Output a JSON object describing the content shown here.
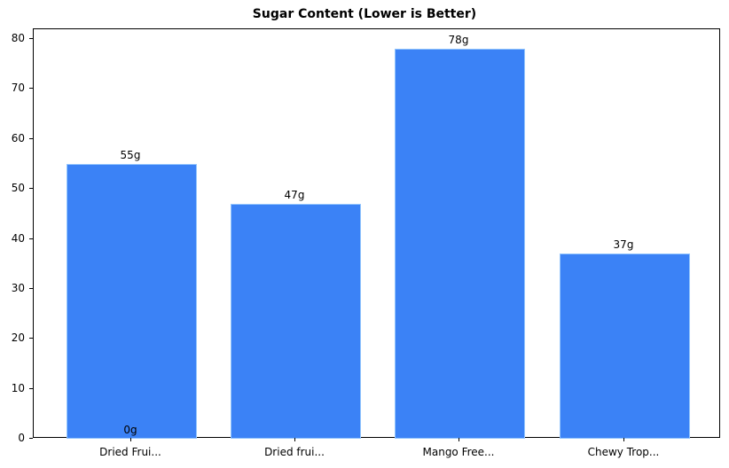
{
  "chart_data": {
    "type": "bar",
    "title": "Sugar Content (Lower is Better)",
    "xlabel": "",
    "ylabel": "",
    "categories": [
      "Dried Frui...",
      "Dried frui...",
      "Mango Free...",
      "Chewy Trop..."
    ],
    "values": [
      55,
      47,
      78,
      37
    ],
    "value_labels": [
      "55g",
      "47g",
      "78g",
      "37g"
    ],
    "extra_annotations": [
      {
        "text": "0g",
        "category_index": 0,
        "y": 0
      }
    ],
    "ylim": [
      0,
      82
    ],
    "yticks": [
      0,
      10,
      20,
      30,
      40,
      50,
      60,
      70,
      80
    ],
    "grid": false,
    "legend": null,
    "bar_color": "#3b82f6",
    "bar_edge_color": "#93c5fd"
  }
}
